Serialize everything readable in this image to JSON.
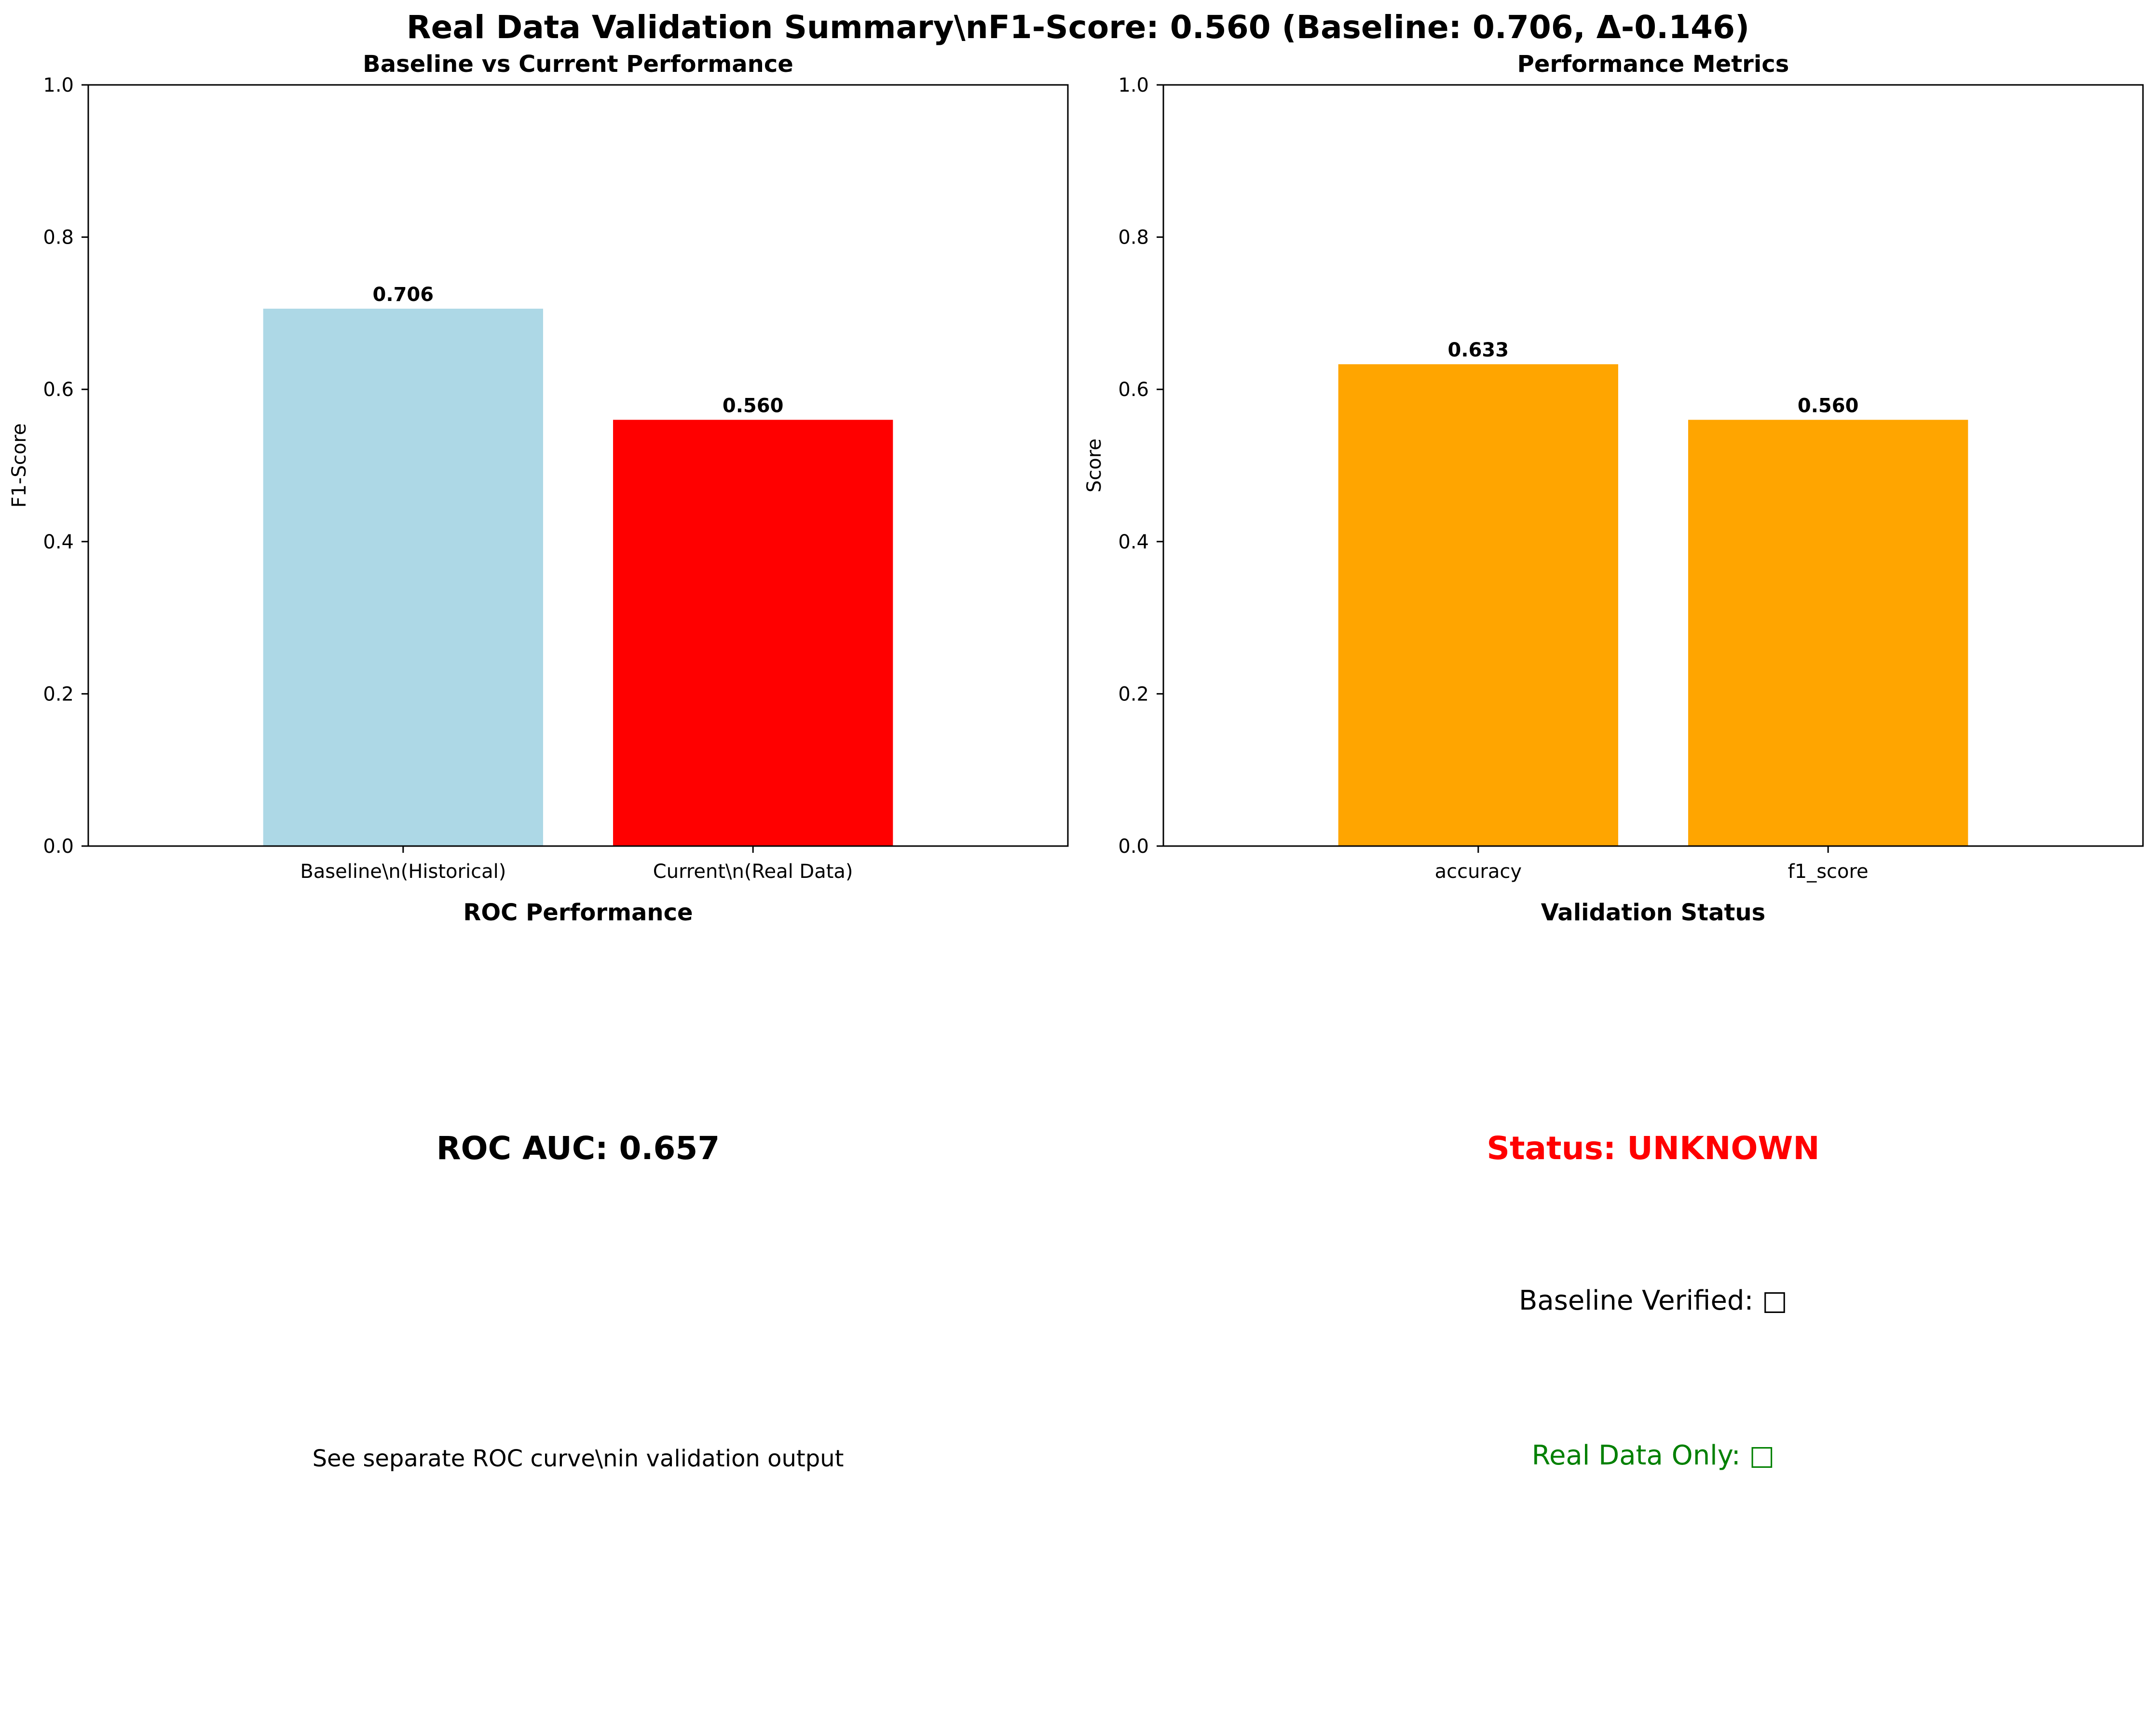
{
  "figure": {
    "title": "Real Data Validation Summary\\nF1-Score: 0.560 (Baseline: 0.706, Δ-0.146)"
  },
  "chart_data": [
    {
      "type": "bar",
      "title": "Baseline vs Current Performance",
      "xlabel": "",
      "ylabel": "F1-Score",
      "categories": [
        "Baseline\\n(Historical)",
        "Current\\n(Real Data)"
      ],
      "values": [
        0.706,
        0.56
      ],
      "value_labels": [
        "0.706",
        "0.560"
      ],
      "colors": [
        "#add8e6",
        "#ff0000"
      ],
      "ylim": [
        0,
        1.0
      ],
      "yticks": [
        "0.0",
        "0.2",
        "0.4",
        "0.6",
        "0.8",
        "1.0"
      ],
      "grid": false
    },
    {
      "type": "bar",
      "title": "Performance Metrics",
      "xlabel": "",
      "ylabel": "Score",
      "categories": [
        "accuracy",
        "f1_score"
      ],
      "values": [
        0.633,
        0.56
      ],
      "value_labels": [
        "0.633",
        "0.560"
      ],
      "colors": [
        "#ffa500",
        "#ffa500"
      ],
      "ylim": [
        0,
        1.0
      ],
      "yticks": [
        "0.0",
        "0.2",
        "0.4",
        "0.6",
        "0.8",
        "1.0"
      ],
      "grid": false
    }
  ],
  "roc_panel": {
    "title": "ROC Performance",
    "auc_text": "ROC AUC: 0.657",
    "note": "See separate ROC curve\\nin validation output"
  },
  "status_panel": {
    "title": "Validation Status",
    "status_text": "Status: UNKNOWN",
    "status_color": "#ff0000",
    "baseline_text": "Baseline Verified: ",
    "baseline_glyph": "□",
    "real_data_text": "Real Data Only: ",
    "real_data_glyph": "□",
    "real_data_color": "#008000"
  }
}
